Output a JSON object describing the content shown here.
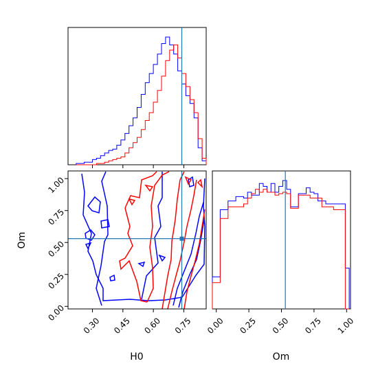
{
  "chart_data": {
    "type": "corner",
    "truth": {
      "H0": 0.74,
      "Om": 0.53
    },
    "colors": {
      "series_1": "#0000ff",
      "series_2": "#ff0000",
      "truth": "#1f77b4"
    },
    "panels": [
      {
        "id": "hist_H0",
        "type": "histogram",
        "xlim": [
          0.18,
          0.86
        ],
        "bins": [
          0.22,
          0.24,
          0.26,
          0.28,
          0.3,
          0.32,
          0.34,
          0.36,
          0.38,
          0.4,
          0.42,
          0.44,
          0.46,
          0.48,
          0.5,
          0.52,
          0.54,
          0.56,
          0.58,
          0.6,
          0.62,
          0.64,
          0.66,
          0.68,
          0.7,
          0.72,
          0.74,
          0.76,
          0.78,
          0.8,
          0.82,
          0.84,
          0.86
        ],
        "series": [
          {
            "color": "blue",
            "values": [
              1,
              1,
              2,
              2,
              4,
              5,
              7,
              9,
              11,
              12,
              15,
              19,
              24,
              30,
              36,
              44,
              54,
              63,
              70,
              77,
              85,
              93,
              98,
              92,
              85,
              72,
              62,
              53,
              47,
              36,
              13,
              3
            ]
          },
          {
            "color": "red",
            "values": [
              0,
              0,
              0,
              0,
              0,
              1,
              1,
              2,
              3,
              4,
              5,
              6,
              9,
              13,
              17,
              21,
              27,
              34,
              40,
              48,
              57,
              68,
              80,
              88,
              92,
              82,
              70,
              60,
              50,
              40,
              20,
              5
            ]
          }
        ]
      },
      {
        "id": "scatter_H0_Om",
        "type": "contour",
        "xlabel": "H0",
        "ylabel": "Om",
        "xlim": [
          0.18,
          0.86
        ],
        "ylim": [
          -0.02,
          1.06
        ],
        "xticks": [
          "0.30",
          "0.45",
          "0.60",
          "0.75"
        ],
        "yticks": [
          "0.00",
          "0.25",
          "0.50",
          "0.75",
          "1.00"
        ]
      },
      {
        "id": "hist_Om",
        "type": "histogram",
        "xlabel": "Om",
        "xlim": [
          -0.03,
          1.03
        ],
        "xticks": [
          "0.00",
          "0.25",
          "0.50",
          "0.75",
          "1.00"
        ],
        "bins": [
          -0.03,
          0.0,
          0.03,
          0.06,
          0.09,
          0.12,
          0.15,
          0.18,
          0.21,
          0.24,
          0.27,
          0.3,
          0.33,
          0.36,
          0.39,
          0.42,
          0.45,
          0.48,
          0.51,
          0.54,
          0.57,
          0.6,
          0.63,
          0.66,
          0.69,
          0.72,
          0.75,
          0.78,
          0.81,
          0.84,
          0.87,
          0.9,
          0.93,
          0.96,
          0.99,
          1.02
        ],
        "series": [
          {
            "color": "blue",
            "values": [
              22,
              22,
              68,
              68,
              74,
              74,
              77,
              77,
              76,
              80,
              78,
              78,
              86,
              84,
              80,
              86,
              80,
              84,
              88,
              82,
              70,
              70,
              79,
              79,
              83,
              80,
              79,
              74,
              74,
              72,
              72,
              72,
              72,
              72,
              28
            ]
          },
          {
            "color": "red",
            "values": [
              18,
              18,
              62,
              62,
              70,
              70,
              70,
              70,
              72,
              76,
              79,
              82,
              80,
              82,
              80,
              80,
              78,
              79,
              80,
              79,
              69,
              69,
              78,
              78,
              78,
              76,
              76,
              76,
              70,
              70,
              70,
              68,
              68,
              68,
              0
            ]
          }
        ]
      }
    ]
  }
}
